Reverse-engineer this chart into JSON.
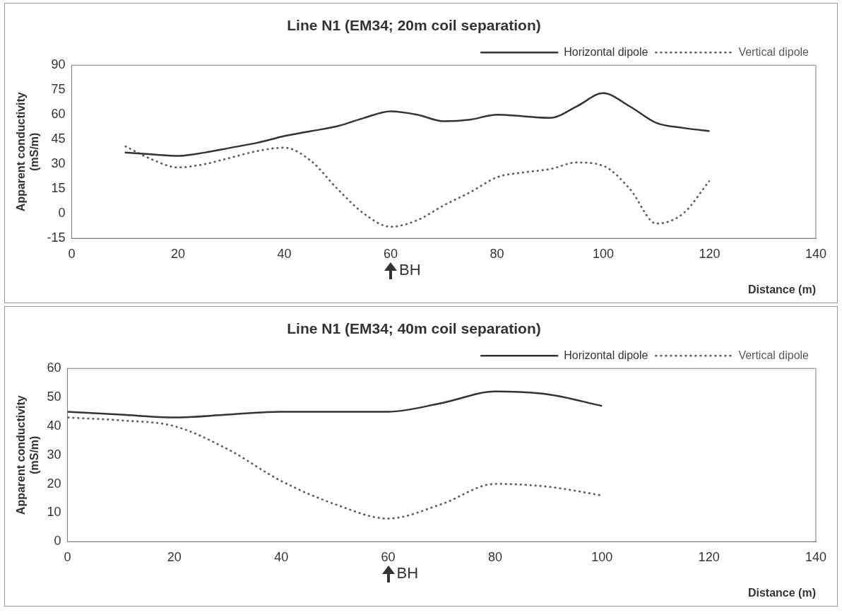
{
  "chart_data": [
    {
      "type": "line",
      "title": "Line N1 (EM34; 20m coil separation)",
      "xlabel": "Distance (m)",
      "ylabel": "Apparent conductivity (mS/m)",
      "xlim": [
        0,
        140
      ],
      "xticks": [
        0,
        20,
        40,
        60,
        80,
        100,
        120,
        140
      ],
      "ylim": [
        -15,
        90
      ],
      "yticks": [
        -15,
        0,
        15,
        30,
        45,
        60,
        75,
        90
      ],
      "grid": false,
      "legend": "top right",
      "marker": "none",
      "annotations": [
        "BH"
      ],
      "series": [
        {
          "name": "Horizontal dipole",
          "color": "#333333",
          "line_style": "solid",
          "x": [
            10,
            15,
            20,
            25,
            30,
            35,
            40,
            45,
            50,
            55,
            60,
            65,
            70,
            75,
            80,
            85,
            90,
            95,
            100,
            105,
            110,
            115,
            120
          ],
          "values": [
            37,
            36,
            35,
            37,
            40,
            43,
            47,
            50,
            53,
            58,
            62,
            60,
            56,
            57,
            60,
            59,
            58,
            65,
            73,
            65,
            55,
            52,
            50
          ]
        },
        {
          "name": "Vertical dipole",
          "color": "#5a5a5a",
          "line_style": "dotted",
          "x": [
            10,
            15,
            20,
            25,
            30,
            35,
            40,
            45,
            50,
            55,
            60,
            65,
            70,
            75,
            80,
            85,
            90,
            95,
            100,
            105,
            110,
            115,
            120
          ],
          "values": [
            41,
            33,
            28,
            30,
            34,
            38,
            40,
            32,
            15,
            0,
            -8,
            -4,
            5,
            13,
            22,
            25,
            27,
            31,
            29,
            15,
            -6,
            0,
            20
          ]
        }
      ]
    },
    {
      "type": "line",
      "title": "Line N1 (EM34; 40m coil separation)",
      "xlabel": "Distance (m)",
      "ylabel": "Apparent conductivity (mS/m)",
      "xlim": [
        0,
        140
      ],
      "xticks": [
        0,
        20,
        40,
        60,
        80,
        100,
        120,
        140
      ],
      "ylim": [
        0,
        60
      ],
      "yticks": [
        0,
        10,
        20,
        30,
        40,
        50,
        60
      ],
      "grid": false,
      "legend": "top right",
      "marker": "none",
      "annotations": [
        "BH"
      ],
      "series": [
        {
          "name": "Horizontal dipole",
          "color": "#333333",
          "line_style": "solid",
          "x": [
            0,
            10,
            20,
            30,
            40,
            50,
            60,
            70,
            80,
            90,
            100
          ],
          "values": [
            45,
            44,
            43,
            44,
            45,
            45,
            45,
            48,
            52,
            51,
            47
          ]
        },
        {
          "name": "Vertical dipole",
          "color": "#5a5a5a",
          "line_style": "dotted",
          "x": [
            0,
            10,
            20,
            30,
            40,
            50,
            60,
            70,
            80,
            90,
            100
          ],
          "values": [
            43,
            42,
            40,
            32,
            21,
            13,
            8,
            13,
            20,
            19,
            16
          ]
        }
      ]
    }
  ]
}
